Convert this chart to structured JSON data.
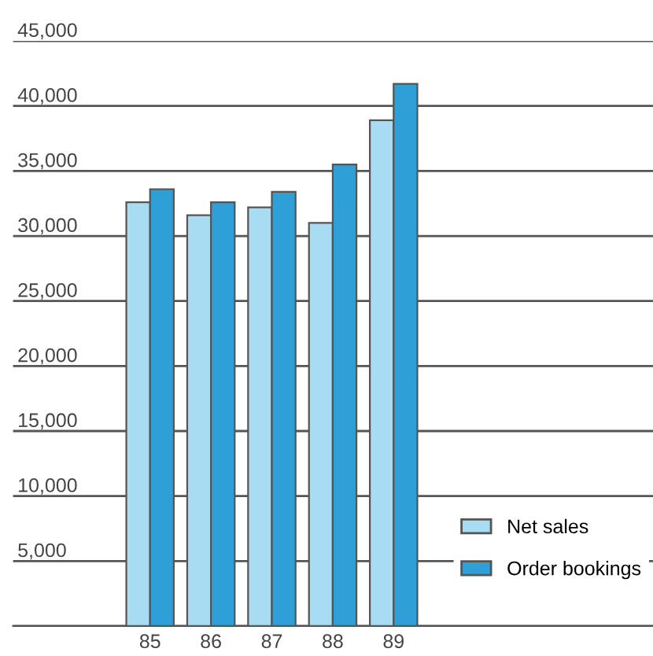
{
  "chart_data": {
    "type": "bar",
    "categories": [
      "85",
      "86",
      "87",
      "88",
      "89"
    ],
    "series": [
      {
        "name": "Net sales",
        "color": "#a8dcf2",
        "values": [
          32600,
          31600,
          32200,
          31000,
          38900
        ]
      },
      {
        "name": "Order bookings",
        "color": "#2f9fd8",
        "values": [
          33600,
          32600,
          33400,
          35500,
          41700
        ]
      }
    ],
    "ylim": [
      0,
      45000
    ],
    "yticks": [
      {
        "value": 0,
        "label": null
      },
      {
        "value": 5000,
        "label": "5,000"
      },
      {
        "value": 10000,
        "label": "10,000"
      },
      {
        "value": 15000,
        "label": "15,000"
      },
      {
        "value": 20000,
        "label": "20,000"
      },
      {
        "value": 25000,
        "label": "25,000"
      },
      {
        "value": 30000,
        "label": "30,000"
      },
      {
        "value": 35000,
        "label": "35,000"
      },
      {
        "value": 40000,
        "label": "40,000"
      },
      {
        "value": 45000,
        "label": "45,000"
      }
    ],
    "grid": "y",
    "legend": "bottom right"
  }
}
